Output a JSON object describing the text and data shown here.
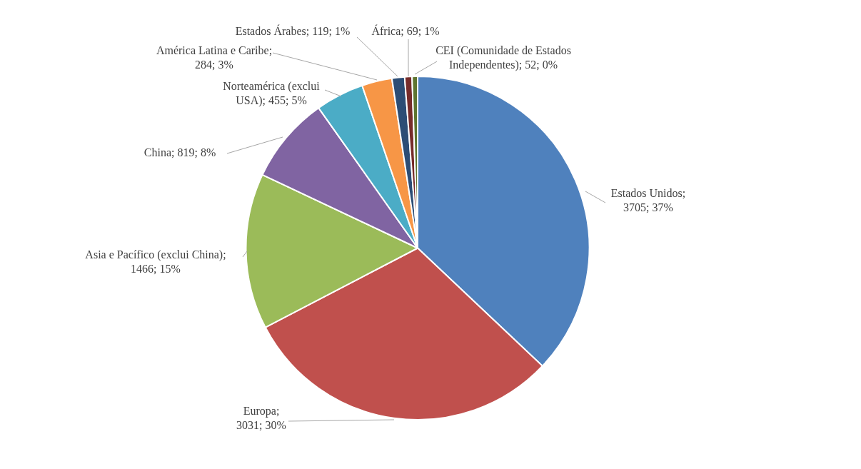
{
  "chart_data": {
    "type": "pie",
    "categories": [
      "Estados Unidos",
      "Europa",
      "Asia e Pacífico (exclui China)",
      "China",
      "Norteamérica (exclui USA)",
      "América Latina e Caribe",
      "Estados Árabes",
      "África",
      "CEI (Comunidade de Estados Independentes)"
    ],
    "values": [
      3705,
      3031,
      1466,
      819,
      455,
      284,
      119,
      69,
      52
    ],
    "colors": [
      "#4f81bd",
      "#c0504d",
      "#9bbb59",
      "#8064a2",
      "#4bacc6",
      "#f79646",
      "#2c4d75",
      "#772c2a",
      "#5f7530"
    ],
    "value_labels": [
      "; 3705; 37%",
      "; 3031; 30%",
      "; 1466; 15%",
      "; 819; 8%",
      "; 455; 5%",
      "; 284; 3%",
      "; 119; 1%",
      "; 69; 1%",
      "; 52; 0%"
    ],
    "legend": false
  }
}
